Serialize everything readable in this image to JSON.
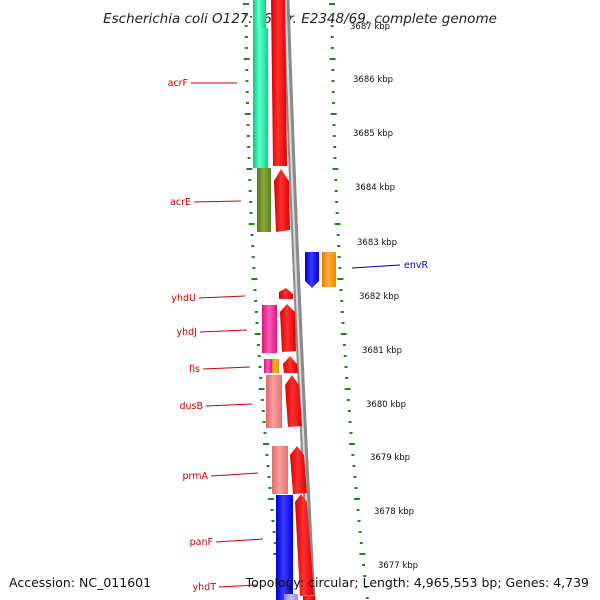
{
  "title": "Escherichia coli O127:H6 str. E2348/69, complete genome",
  "footer": {
    "accession": "Accession: NC_011601",
    "summary": "Topology: circular; Length: 4,965,553 bp; Genes: 4,739"
  },
  "colors": {
    "label_left": "#cc0000",
    "label_right": "#0000cc",
    "tick": "#1a8a1a",
    "backbone_dark": "#888888",
    "backbone_light": "#d0d0d0"
  },
  "kbp_ticks": [
    "3677 kbp",
    "3678 kbp",
    "3679 kbp",
    "3680 kbp",
    "3681 kbp",
    "3682 kbp",
    "3683 kbp",
    "3684 kbp",
    "3685 kbp",
    "3686 kbp",
    "3687 kbp"
  ],
  "left_labels": [
    "acrF",
    "acrE",
    "yhdU",
    "yhdJ",
    "fis",
    "dusB",
    "prmA",
    "panF",
    "yhdT"
  ],
  "right_labels": [
    "envR"
  ],
  "features": [
    {
      "name": "acrF",
      "ring": "cog",
      "color": "#00ee99"
    },
    {
      "name": "acrF",
      "ring": "cds",
      "color": "#ff0000"
    },
    {
      "name": "acrE",
      "ring": "cog",
      "color": "#6b8e23"
    },
    {
      "name": "acrE",
      "ring": "cds",
      "color": "#ff0000"
    },
    {
      "name": "envR",
      "ring": "cds-reverse",
      "color": "#0000ff"
    },
    {
      "name": "envR",
      "ring": "cog-outer",
      "color": "#ff9900"
    },
    {
      "name": "yhdU",
      "ring": "cds",
      "color": "#ff0000"
    },
    {
      "name": "yhdJ",
      "ring": "cog",
      "color": "#ff1493"
    },
    {
      "name": "yhdJ",
      "ring": "cds",
      "color": "#ff0000"
    },
    {
      "name": "fis",
      "ring": "cog",
      "color": "#ff1493"
    },
    {
      "name": "dusB",
      "ring": "cog",
      "color": "#ff9900"
    },
    {
      "name": "dusB",
      "ring": "cog",
      "color": "#f08080"
    },
    {
      "name": "dusB",
      "ring": "cds",
      "color": "#ff0000"
    },
    {
      "name": "prmA",
      "ring": "cog",
      "color": "#f08080"
    },
    {
      "name": "prmA",
      "ring": "cds",
      "color": "#ff0000"
    },
    {
      "name": "panF",
      "ring": "cog",
      "color": "#0000ff"
    },
    {
      "name": "panF",
      "ring": "cds",
      "color": "#ff0000"
    },
    {
      "name": "yhdT",
      "ring": "cog",
      "color": "#a0a0ff"
    }
  ]
}
